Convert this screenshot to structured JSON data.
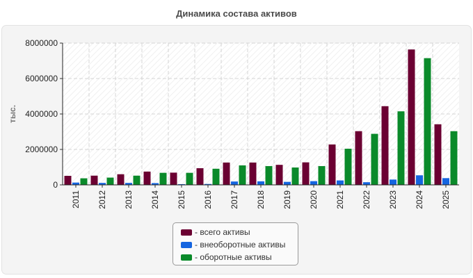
{
  "chart_data": {
    "type": "bar",
    "title": "Динамика состава активов",
    "ylabel": "тыс.",
    "xlabel": "",
    "ylim": [
      0,
      8000000
    ],
    "yticks": [
      0,
      2000000,
      4000000,
      6000000,
      8000000
    ],
    "grid": true,
    "legend_position": "bottom-center",
    "categories": [
      "2011",
      "2012",
      "2013",
      "2014",
      "2015",
      "2016",
      "2017",
      "2018",
      "2019",
      "2020",
      "2021",
      "2022",
      "2023",
      "2024",
      "2025"
    ],
    "series": [
      {
        "name": "всего активы",
        "label": "- всего активы",
        "color": "#6b0032",
        "values": [
          510000,
          520000,
          600000,
          750000,
          690000,
          940000,
          1260000,
          1260000,
          1130000,
          1270000,
          2280000,
          3030000,
          4440000,
          7640000,
          3420000
        ]
      },
      {
        "name": "внеоборотные активы",
        "label": "- внеоборотные активы",
        "color": "#1565e0",
        "values": [
          130000,
          110000,
          110000,
          100000,
          40000,
          50000,
          190000,
          200000,
          170000,
          210000,
          250000,
          150000,
          300000,
          540000,
          380000
        ]
      },
      {
        "name": "оборотные активы",
        "label": "- оборотные активы",
        "color": "#0a8a2a",
        "values": [
          370000,
          410000,
          520000,
          680000,
          680000,
          910000,
          1100000,
          1060000,
          980000,
          1060000,
          2040000,
          2880000,
          4150000,
          7150000,
          3030000
        ]
      }
    ]
  }
}
